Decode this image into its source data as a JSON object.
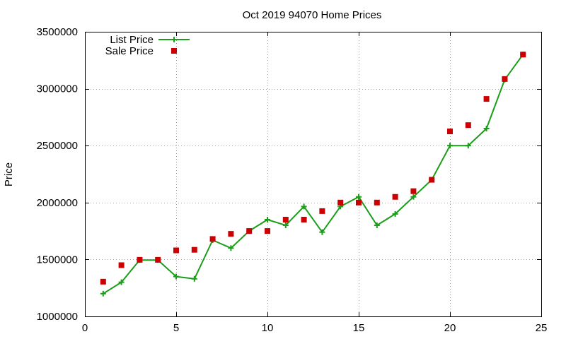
{
  "chart_data": {
    "type": "line",
    "title": "Oct 2019 94070 Home Prices",
    "xlabel": "",
    "ylabel": "Price",
    "xlim": [
      0,
      25
    ],
    "ylim": [
      1000000,
      3500000
    ],
    "xticks": [
      0,
      5,
      10,
      15,
      20,
      25
    ],
    "yticks": [
      1000000,
      1500000,
      2000000,
      2500000,
      3000000,
      3500000
    ],
    "xtick_labels": [
      "0",
      "5",
      "10",
      "15",
      "20",
      "25"
    ],
    "ytick_labels": [
      "1000000",
      "1500000",
      "2000000",
      "2500000",
      "3000000",
      "3500000"
    ],
    "grid": true,
    "legend_position": "top-left",
    "series": [
      {
        "name": "List Price",
        "style": "line-points",
        "marker": "plus",
        "color": "#1a9e1a",
        "x": [
          1,
          2,
          3,
          4,
          5,
          6,
          7,
          8,
          9,
          10,
          11,
          12,
          13,
          14,
          15,
          16,
          17,
          18,
          19,
          20,
          21,
          22,
          23,
          24
        ],
        "y": [
          1200000,
          1300000,
          1495000,
          1495000,
          1350000,
          1330000,
          1670000,
          1600000,
          1750000,
          1850000,
          1800000,
          1965000,
          1740000,
          1965000,
          2050000,
          1800000,
          1900000,
          2050000,
          2200000,
          2500000,
          2500000,
          2650000,
          3080000,
          3300000
        ]
      },
      {
        "name": "Sale Price",
        "style": "points",
        "marker": "square",
        "color": "#cc0000",
        "x": [
          1,
          2,
          3,
          4,
          5,
          6,
          7,
          8,
          9,
          10,
          11,
          12,
          13,
          14,
          15,
          16,
          17,
          18,
          19,
          20,
          21,
          22,
          23,
          24
        ],
        "y": [
          1305000,
          1450000,
          1497000,
          1497000,
          1580000,
          1585000,
          1680000,
          1725000,
          1750000,
          1750000,
          1850000,
          1850000,
          1925000,
          2000000,
          2000000,
          2000000,
          2050000,
          2100000,
          2200000,
          2625000,
          2680000,
          2910000,
          3085000,
          3300000
        ]
      }
    ]
  }
}
